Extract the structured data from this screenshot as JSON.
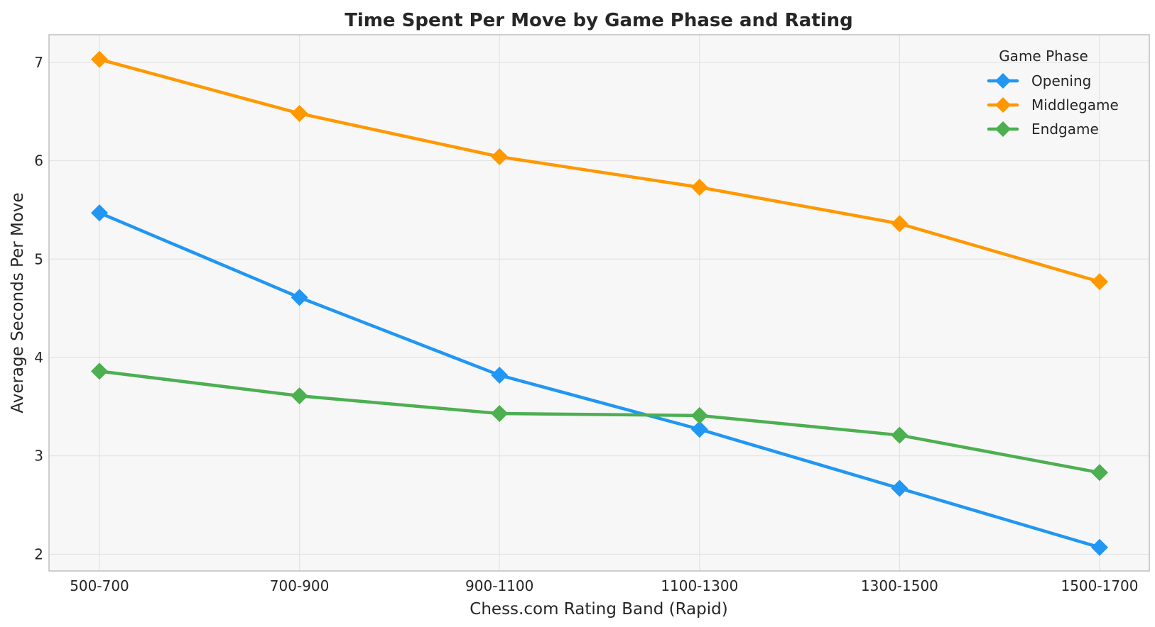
{
  "chart_data": {
    "type": "line",
    "title": "Time Spent Per Move by Game Phase and Rating",
    "xlabel": "Chess.com Rating Band (Rapid)",
    "ylabel": "Average Seconds Per Move",
    "categories": [
      "500-700",
      "700-900",
      "900-1100",
      "1100-1300",
      "1300-1500",
      "1500-1700"
    ],
    "ylim": [
      1.83,
      7.28
    ],
    "yticks": [
      2,
      3,
      4,
      5,
      6,
      7
    ],
    "grid": true,
    "legend": {
      "title": "Game Phase",
      "placement": "top-right"
    },
    "series": [
      {
        "name": "Opening",
        "color": "#2196F3",
        "values": [
          5.47,
          4.61,
          3.82,
          3.27,
          2.67,
          2.07
        ]
      },
      {
        "name": "Middlegame",
        "color": "#FF9800",
        "values": [
          7.03,
          6.48,
          6.04,
          5.73,
          5.36,
          4.77
        ]
      },
      {
        "name": "Endgame",
        "color": "#4CAF50",
        "values": [
          3.86,
          3.61,
          3.43,
          3.41,
          3.21,
          2.83
        ]
      }
    ]
  },
  "colors": {
    "plot_background": "#F7F7F7",
    "grid": "#E3E3E3",
    "axis": "#BFBFBF",
    "text": "#262626"
  }
}
